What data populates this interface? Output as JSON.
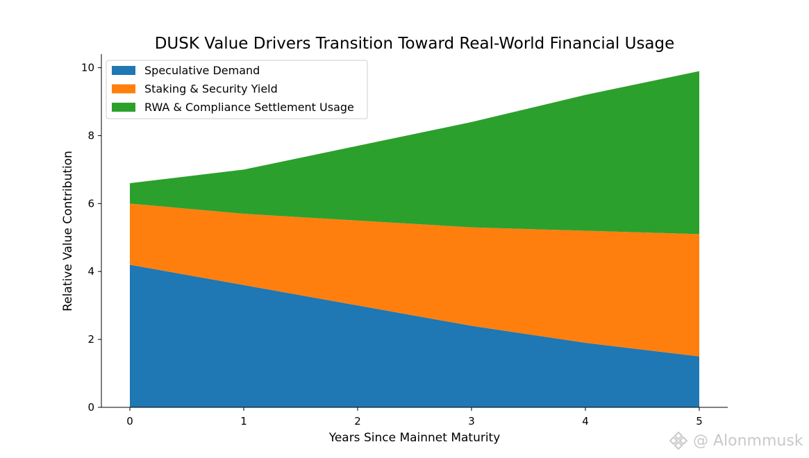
{
  "chart_data": {
    "type": "area",
    "stacked": true,
    "title": "DUSK Value Drivers Transition Toward Real-World Financial Usage",
    "xlabel": "Years Since Mainnet Maturity",
    "ylabel": "Relative Value Contribution",
    "x": [
      0,
      1,
      2,
      3,
      4,
      5
    ],
    "xlim": [
      -0.25,
      5.25
    ],
    "ylim": [
      0,
      10.4
    ],
    "xticks": [
      0,
      1,
      2,
      3,
      4,
      5
    ],
    "yticks": [
      0,
      2,
      4,
      6,
      8,
      10
    ],
    "grid": false,
    "legend": "top-left",
    "series": [
      {
        "name": "Speculative Demand",
        "values": [
          4.2,
          3.6,
          3.0,
          2.4,
          1.9,
          1.5
        ],
        "color": "#1f77b4"
      },
      {
        "name": "Staking & Security Yield",
        "values": [
          1.8,
          2.1,
          2.5,
          2.9,
          3.3,
          3.6
        ],
        "color": "#ff7f0e"
      },
      {
        "name": "RWA & Compliance Settlement Usage",
        "values": [
          0.6,
          1.3,
          2.2,
          3.1,
          4.0,
          4.8
        ],
        "color": "#2ca02c"
      }
    ]
  },
  "watermark": {
    "text": "@ Alonmmusk",
    "icon": "binance-logo-icon"
  }
}
